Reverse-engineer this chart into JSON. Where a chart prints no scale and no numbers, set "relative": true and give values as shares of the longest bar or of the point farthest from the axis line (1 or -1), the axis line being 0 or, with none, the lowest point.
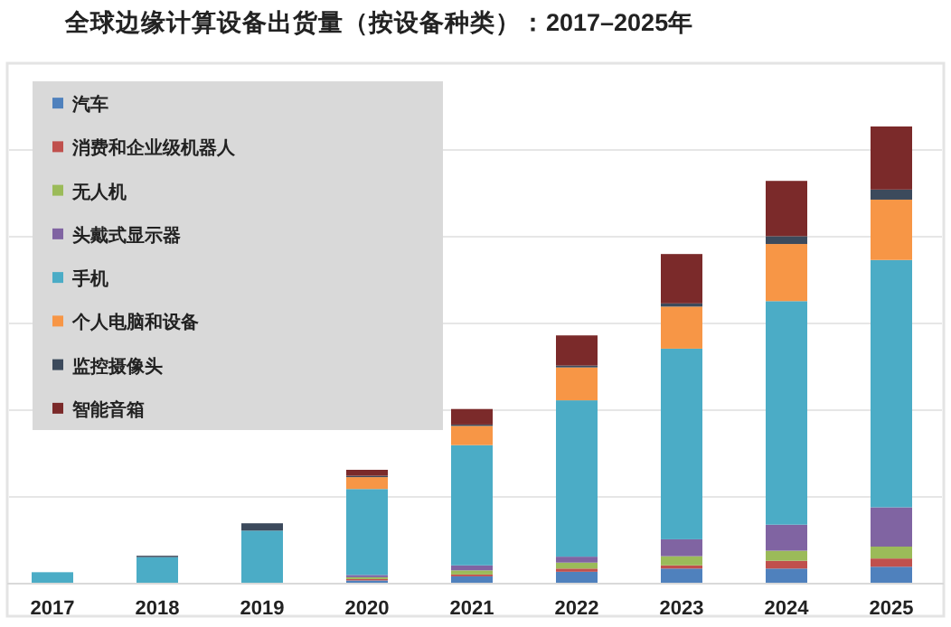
{
  "chart_data": {
    "type": "bar",
    "title": "全球边缘计算设备出货量（按设备种类）：2017–2025年",
    "categories": [
      "2017",
      "2018",
      "2019",
      "2020",
      "2021",
      "2022",
      "2023",
      "2024",
      "2025"
    ],
    "stacked": true,
    "relative": true,
    "grid": "y",
    "legend": "top left",
    "series": [
      {
        "name": "汽车",
        "color": "#4f81bd",
        "values": [
          0,
          0,
          0.002,
          0.007,
          0.016,
          0.026,
          0.033,
          0.033,
          0.037
        ]
      },
      {
        "name": "消费和企业级机器人",
        "color": "#c0504d",
        "values": [
          0,
          0,
          0,
          0.003,
          0.004,
          0.007,
          0.007,
          0.017,
          0.018
        ]
      },
      {
        "name": "无人机",
        "color": "#9bbb59",
        "values": [
          0,
          0,
          0,
          0.004,
          0.009,
          0.013,
          0.02,
          0.022,
          0.026
        ]
      },
      {
        "name": "头戴式显示器",
        "color": "#8064a2",
        "values": [
          0,
          0,
          0,
          0.005,
          0.011,
          0.013,
          0.037,
          0.057,
          0.086
        ]
      },
      {
        "name": "手机",
        "color": "#4bacc6",
        "values": [
          0.025,
          0.058,
          0.114,
          0.188,
          0.263,
          0.342,
          0.417,
          0.489,
          0.541
        ]
      },
      {
        "name": "个人电脑和设备",
        "color": "#f79646",
        "values": [
          0,
          0,
          0,
          0.026,
          0.042,
          0.072,
          0.092,
          0.125,
          0.132
        ]
      },
      {
        "name": "监控摄像头",
        "color": "#3c4a5c",
        "values": [
          0,
          0.003,
          0.016,
          0.003,
          0.003,
          0.004,
          0.007,
          0.017,
          0.022
        ]
      },
      {
        "name": "智能音箱",
        "color": "#7b2a2a",
        "values": [
          0,
          0,
          0,
          0.013,
          0.034,
          0.066,
          0.108,
          0.121,
          0.138
        ]
      }
    ]
  }
}
